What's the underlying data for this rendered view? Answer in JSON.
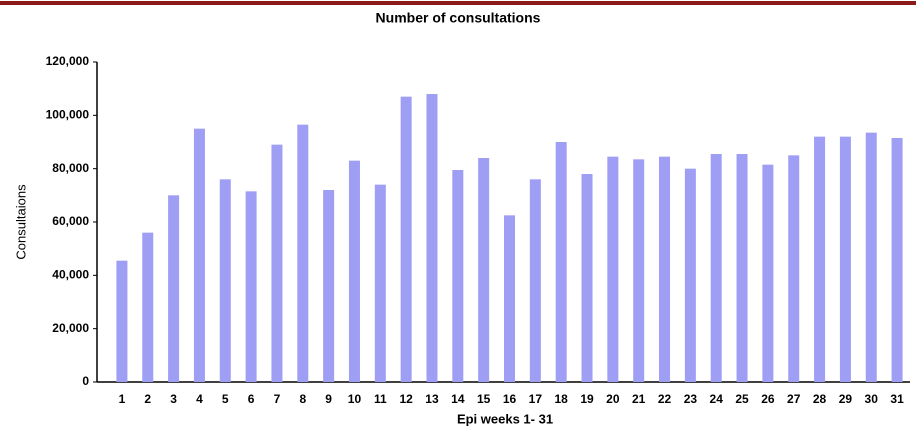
{
  "chart_data": {
    "type": "bar",
    "title": "Number of consultations",
    "x_label": "Epi weeks 1- 31",
    "y_label": "Consultaions",
    "categories": [
      "1",
      "2",
      "3",
      "4",
      "5",
      "6",
      "7",
      "8",
      "9",
      "10",
      "11",
      "12",
      "13",
      "14",
      "15",
      "16",
      "17",
      "18",
      "19",
      "20",
      "21",
      "22",
      "23",
      "24",
      "25",
      "26",
      "27",
      "28",
      "29",
      "30",
      "31"
    ],
    "values": [
      45500,
      56000,
      70000,
      95000,
      76000,
      71500,
      89000,
      96500,
      72000,
      83000,
      74000,
      107000,
      108000,
      79500,
      84000,
      62500,
      76000,
      90000,
      78000,
      84500,
      83500,
      84500,
      80000,
      85500,
      85500,
      81500,
      85000,
      92000,
      92000,
      93500,
      91500
    ],
    "color": "#9e9ef4",
    "ylim": [
      0,
      120000
    ],
    "yticks": [
      0,
      {
        "value": 20000,
        "label": "20,000"
      },
      {
        "value": 40000,
        "label": "40,000"
      },
      {
        "value": 60000,
        "label": "60,000"
      },
      {
        "value": 80000,
        "label": "80,000"
      },
      {
        "value": 100000,
        "label": "100,000"
      },
      {
        "value": 120000,
        "label": "120,000"
      }
    ],
    "grid": false
  }
}
